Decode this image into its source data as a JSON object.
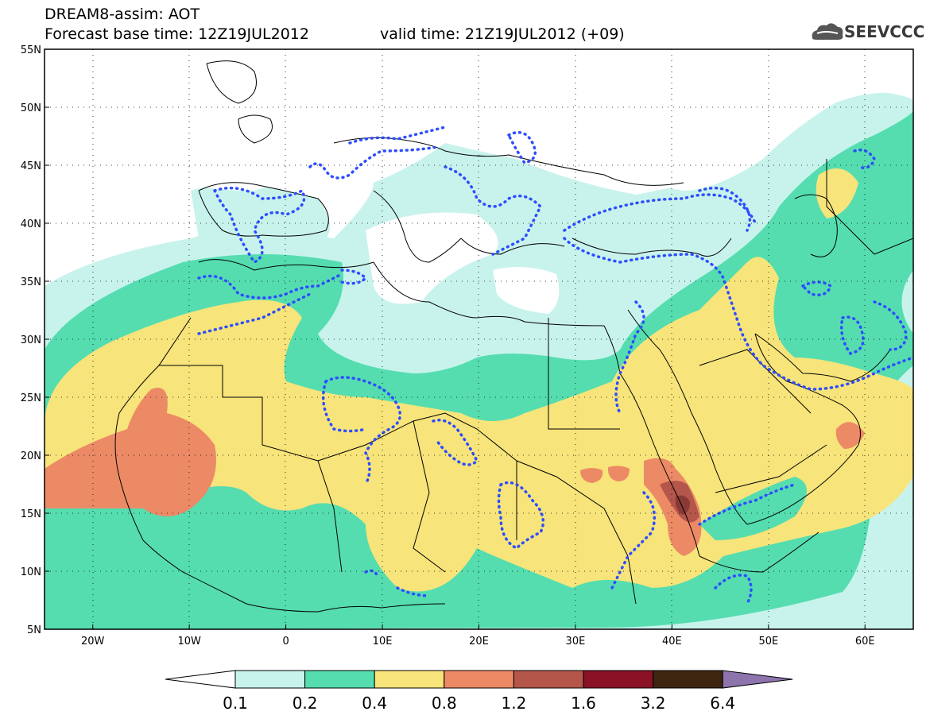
{
  "header": {
    "title_line1": "DREAM8-assim: AOT",
    "title_line2": "Forecast base time: 12Z19JUL2012",
    "valid_time": "valid time: 21Z19JUL2012 (+09)",
    "logo_text": "SEEVCCC"
  },
  "axes": {
    "lat_labels": [
      "55N",
      "50N",
      "45N",
      "40N",
      "35N",
      "30N",
      "25N",
      "20N",
      "15N",
      "10N",
      "5N"
    ],
    "lat_values": [
      55,
      50,
      45,
      40,
      35,
      30,
      25,
      20,
      15,
      10,
      5
    ],
    "lon_labels": [
      "20W",
      "10W",
      "0",
      "10E",
      "20E",
      "30E",
      "40E",
      "50E",
      "60E"
    ],
    "lon_values": [
      -20,
      -10,
      0,
      10,
      20,
      30,
      40,
      50,
      60
    ],
    "lon_range": [
      -25,
      65
    ],
    "lat_range": [
      5,
      55
    ]
  },
  "colorbar": {
    "labels": [
      "0.1",
      "0.2",
      "0.4",
      "0.8",
      "1.2",
      "1.6",
      "3.2",
      "6.4"
    ],
    "colors": [
      "#c8f3ec",
      "#55ddb0",
      "#f7e47a",
      "#ec8a66",
      "#b5564b",
      "#8a1126",
      "#3e2510",
      "#8e74ac"
    ],
    "under_color": "#ffffff"
  },
  "map_colors": {
    "land_outline": "#000000",
    "dotted_contour": "#2e4dff",
    "level_0_1": "#c8f3ec",
    "level_0_2": "#55ddb0",
    "level_0_4": "#f7e47a",
    "level_0_8": "#ec8a66",
    "level_1_2": "#b5564b"
  }
}
